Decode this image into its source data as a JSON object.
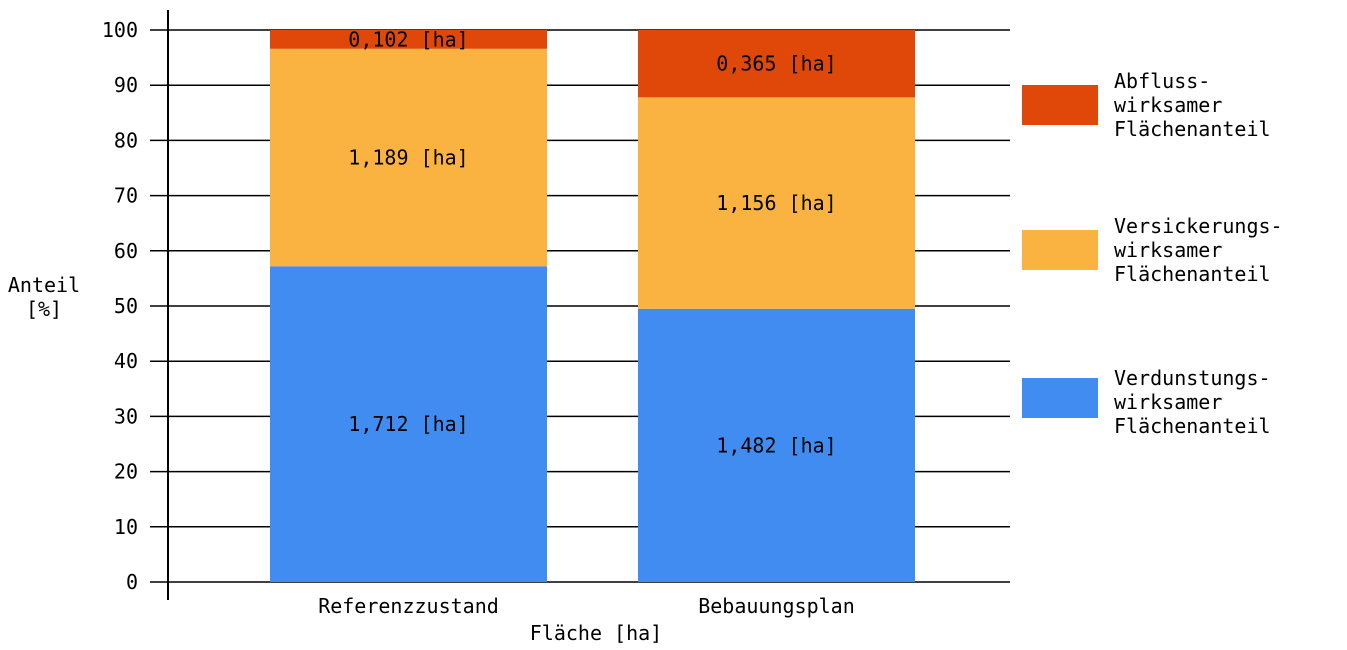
{
  "chart_data": {
    "type": "bar",
    "stacked": true,
    "ylabel": [
      "Anteil",
      "[%]"
    ],
    "xlabel": "Fläche [ha]",
    "ylim": [
      0,
      100
    ],
    "yticks": [
      "0",
      "10",
      "20",
      "30",
      "40",
      "50",
      "60",
      "70",
      "80",
      "90",
      "100"
    ],
    "grid": true,
    "legend_position": "right",
    "categories": [
      "Referenzzustand",
      "Bebauungsplan"
    ],
    "series": [
      {
        "key": "verdunstung",
        "name_lines": [
          "Verdunstungs-",
          "wirksamer",
          "Flächenanteil"
        ],
        "color": "#418cf0",
        "values": [
          57.2,
          49.5
        ],
        "labels": [
          "1,712 [ha]",
          "1,482 [ha]"
        ]
      },
      {
        "key": "versickerung",
        "name_lines": [
          "Versickerungs-",
          "wirksamer",
          "Flächenanteil"
        ],
        "color": "#fab241",
        "values": [
          39.4,
          38.3
        ],
        "labels": [
          "1,189 [ha]",
          "1,156 [ha]"
        ]
      },
      {
        "key": "abfluss",
        "name_lines": [
          "Abfluss-",
          "wirksamer",
          "Flächenanteil"
        ],
        "color": "#df4809",
        "values": [
          3.4,
          12.2
        ],
        "labels": [
          "0,102 [ha]",
          "0,365 [ha]"
        ]
      }
    ]
  }
}
